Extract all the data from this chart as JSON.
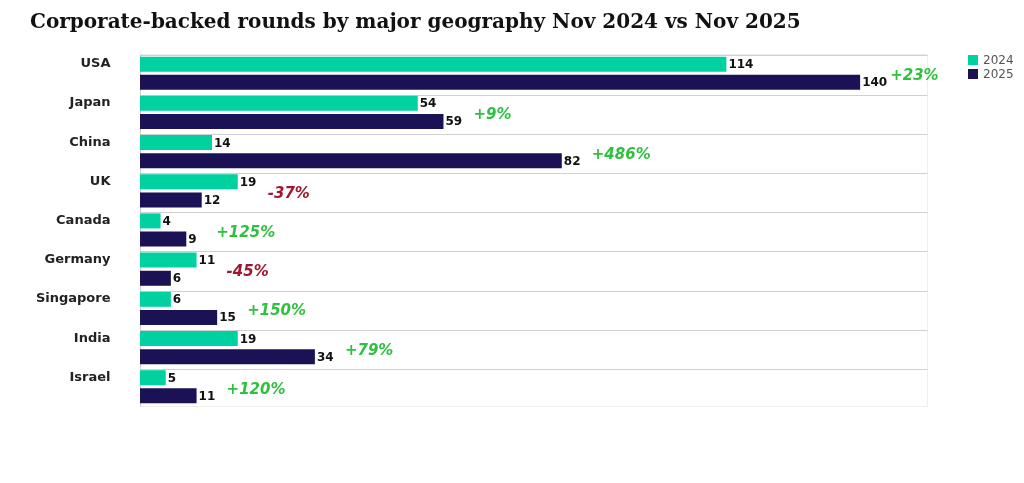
{
  "chart_data": {
    "type": "bar",
    "orientation": "horizontal",
    "title": "Corporate-backed rounds by major geography Nov 2024 vs Nov 2025",
    "categories": [
      "USA",
      "Japan",
      "China",
      "UK",
      "Canada",
      "Germany",
      "Singapore",
      "India",
      "Israel"
    ],
    "series": [
      {
        "name": "2024",
        "color": "#00d1a0",
        "values": [
          114,
          54,
          14,
          19,
          4,
          11,
          6,
          19,
          5
        ]
      },
      {
        "name": "2025",
        "color": "#1b1256",
        "values": [
          140,
          59,
          82,
          12,
          9,
          6,
          15,
          34,
          11
        ]
      }
    ],
    "xlim": [
      0,
      153
    ],
    "data_labels": true,
    "grid": "y",
    "legend": "top right",
    "annotations": [
      "+23%",
      "+9%",
      "+486%",
      "-37%",
      "+125%",
      "-45%",
      "+150%",
      "+79%",
      "+120%"
    ]
  }
}
